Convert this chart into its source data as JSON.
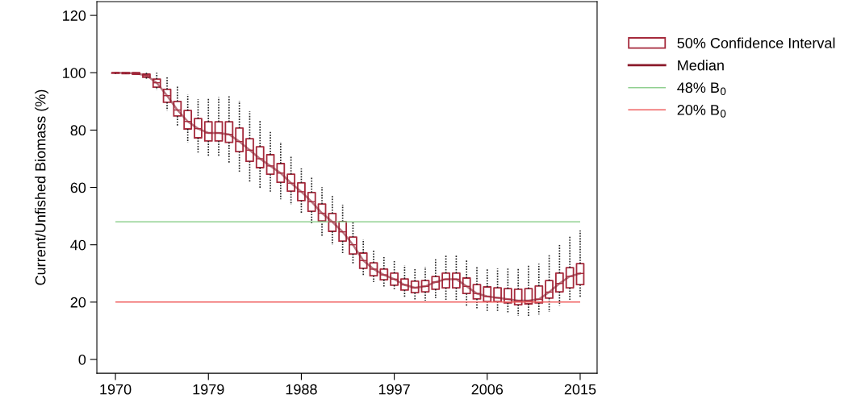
{
  "chart_data": {
    "type": "box",
    "ylabel": "Current/Unfished Biomass (%)",
    "categories": [
      "1970",
      null,
      null,
      null,
      null,
      null,
      null,
      null,
      null,
      "1979",
      null,
      null,
      null,
      null,
      null,
      null,
      null,
      null,
      "1988",
      null,
      null,
      null,
      null,
      null,
      null,
      null,
      null,
      "1997",
      null,
      null,
      null,
      null,
      null,
      null,
      null,
      null,
      "2006",
      null,
      null,
      null,
      null,
      null,
      null,
      null,
      null,
      "2015"
    ],
    "ylim": [
      -4.8,
      124.8
    ],
    "yticks": [
      0,
      20,
      40,
      60,
      80,
      100,
      120
    ],
    "grid": false,
    "legend": "top right",
    "series": [
      {
        "name": "50% Confidence Interval",
        "color": "#a52a3c",
        "boxes": [
          {
            "low": 99.6,
            "q1": 99.8,
            "median": 100,
            "q3": 100,
            "high": 100
          },
          {
            "low": 99.5,
            "q1": 99.7,
            "median": 99.9,
            "q3": 100,
            "high": 100
          },
          {
            "low": 99.5,
            "q1": 99.5,
            "median": 99.8,
            "q3": 100,
            "high": 100
          },
          {
            "low": 97.5,
            "q1": 98.4,
            "median": 99,
            "q3": 99.5,
            "high": 100
          },
          {
            "low": 94,
            "q1": 95,
            "median": 96.5,
            "q3": 97.8,
            "high": 100
          },
          {
            "low": 86.8,
            "q1": 89.7,
            "median": 92,
            "q3": 94.2,
            "high": 98.6
          },
          {
            "low": 81.2,
            "q1": 84.9,
            "median": 87,
            "q3": 90,
            "high": 95.3
          },
          {
            "low": 75.6,
            "q1": 80.4,
            "median": 83,
            "q3": 86.8,
            "high": 92.5
          },
          {
            "low": 71.7,
            "q1": 77.3,
            "median": 80.5,
            "q3": 84,
            "high": 90.8
          },
          {
            "low": 70.9,
            "q1": 76.2,
            "median": 79,
            "q3": 82.9,
            "high": 91
          },
          {
            "low": 71,
            "q1": 76.2,
            "median": 79,
            "q3": 82.9,
            "high": 91.5
          },
          {
            "low": 68.6,
            "q1": 75.7,
            "median": 78.5,
            "q3": 82.9,
            "high": 91.9
          },
          {
            "low": 65.2,
            "q1": 72.5,
            "median": 76,
            "q3": 80.7,
            "high": 90.2
          },
          {
            "low": 61.8,
            "q1": 69.1,
            "median": 73,
            "q3": 77,
            "high": 86.6
          },
          {
            "low": 59.9,
            "q1": 66.9,
            "median": 70,
            "q3": 74.2,
            "high": 83.2
          },
          {
            "low": 58.2,
            "q1": 64.6,
            "median": 67.5,
            "q3": 71.4,
            "high": 79.8
          },
          {
            "low": 55.9,
            "q1": 61.8,
            "median": 65,
            "q3": 68.3,
            "high": 75.9
          },
          {
            "low": 54,
            "q1": 58.7,
            "median": 61.5,
            "q3": 64.6,
            "high": 71.1
          },
          {
            "low": 50.9,
            "q1": 55.4,
            "median": 58.5,
            "q3": 61.6,
            "high": 66.6
          },
          {
            "low": 47.5,
            "q1": 51.7,
            "median": 55,
            "q3": 58.2,
            "high": 63.5
          },
          {
            "low": 43,
            "q1": 48.3,
            "median": 51,
            "q3": 54.2,
            "high": 60.1
          },
          {
            "low": 39.9,
            "q1": 44.7,
            "median": 48,
            "q3": 50.9,
            "high": 57.3
          },
          {
            "low": 36.8,
            "q1": 41.3,
            "median": 44.5,
            "q3": 48.1,
            "high": 54
          },
          {
            "low": 33.2,
            "q1": 36.8,
            "median": 40,
            "q3": 42.7,
            "high": 48.1
          },
          {
            "low": 29.2,
            "q1": 31.8,
            "median": 34.5,
            "q3": 37.1,
            "high": 41.9
          },
          {
            "low": 27,
            "q1": 29.2,
            "median": 31.5,
            "q3": 33.7,
            "high": 38.2
          },
          {
            "low": 25,
            "q1": 27.8,
            "median": 29.5,
            "q3": 31.5,
            "high": 35.7
          },
          {
            "low": 24.5,
            "q1": 25.9,
            "median": 28,
            "q3": 30.1,
            "high": 34.3
          },
          {
            "low": 21.4,
            "q1": 24.2,
            "median": 26,
            "q3": 28.1,
            "high": 32.9
          },
          {
            "low": 20.5,
            "q1": 23.3,
            "median": 25,
            "q3": 27.3,
            "high": 31.8
          },
          {
            "low": 20.5,
            "q1": 23.6,
            "median": 25.5,
            "q3": 27.5,
            "high": 32.3
          },
          {
            "low": 21.4,
            "q1": 24.5,
            "median": 27,
            "q3": 28.9,
            "high": 34.9
          },
          {
            "low": 20.8,
            "q1": 25,
            "median": 28,
            "q3": 30.1,
            "high": 36.3
          },
          {
            "low": 20.5,
            "q1": 25,
            "median": 28,
            "q3": 30.1,
            "high": 36.3
          },
          {
            "low": 18.8,
            "q1": 23,
            "median": 25.5,
            "q3": 28.4,
            "high": 34.6
          },
          {
            "low": 17.4,
            "q1": 21.1,
            "median": 23,
            "q3": 26.1,
            "high": 32.6
          },
          {
            "low": 16.6,
            "q1": 20.2,
            "median": 22,
            "q3": 25.3,
            "high": 31.8
          },
          {
            "low": 16.6,
            "q1": 20.2,
            "median": 21.5,
            "q3": 25,
            "high": 31.8
          },
          {
            "low": 16.3,
            "q1": 19.7,
            "median": 21,
            "q3": 24.7,
            "high": 31.8
          },
          {
            "low": 15.2,
            "q1": 19.1,
            "median": 20.5,
            "q3": 24.5,
            "high": 32
          },
          {
            "low": 15.2,
            "q1": 19.4,
            "median": 20.5,
            "q3": 24.7,
            "high": 32.9
          },
          {
            "low": 15.7,
            "q1": 19.7,
            "median": 21,
            "q3": 25.6,
            "high": 33.4
          },
          {
            "low": 16.6,
            "q1": 21.4,
            "median": 23.5,
            "q3": 27.5,
            "high": 36.3
          },
          {
            "low": 18.8,
            "q1": 23.6,
            "median": 26.5,
            "q3": 30.1,
            "high": 39.9
          },
          {
            "low": 20.8,
            "q1": 25,
            "median": 29,
            "q3": 32,
            "high": 43
          },
          {
            "low": 21.6,
            "q1": 26.1,
            "median": 30,
            "q3": 33.4,
            "high": 45
          }
        ]
      },
      {
        "name": "Median",
        "type": "line",
        "color": "#8b1a2b",
        "values": [
          100,
          99.9,
          99.8,
          99,
          96.5,
          92,
          87,
          83,
          80.5,
          79,
          79,
          78.5,
          76,
          73,
          70,
          67.5,
          65,
          61.5,
          58.5,
          55,
          51,
          48,
          44.5,
          40,
          34.5,
          31.5,
          29.5,
          28,
          26,
          25,
          25.5,
          27,
          28,
          28,
          25.5,
          23,
          22,
          21.5,
          21,
          20.5,
          20.5,
          21,
          23.5,
          26.5,
          29,
          30
        ]
      }
    ],
    "ref_lines": [
      {
        "axis": "y",
        "value": 48,
        "label": "48% B$_{0}$",
        "color": "#90d090"
      },
      {
        "axis": "y",
        "value": 20,
        "label": "20% B$_{0}$",
        "color": "#f06060"
      }
    ]
  }
}
